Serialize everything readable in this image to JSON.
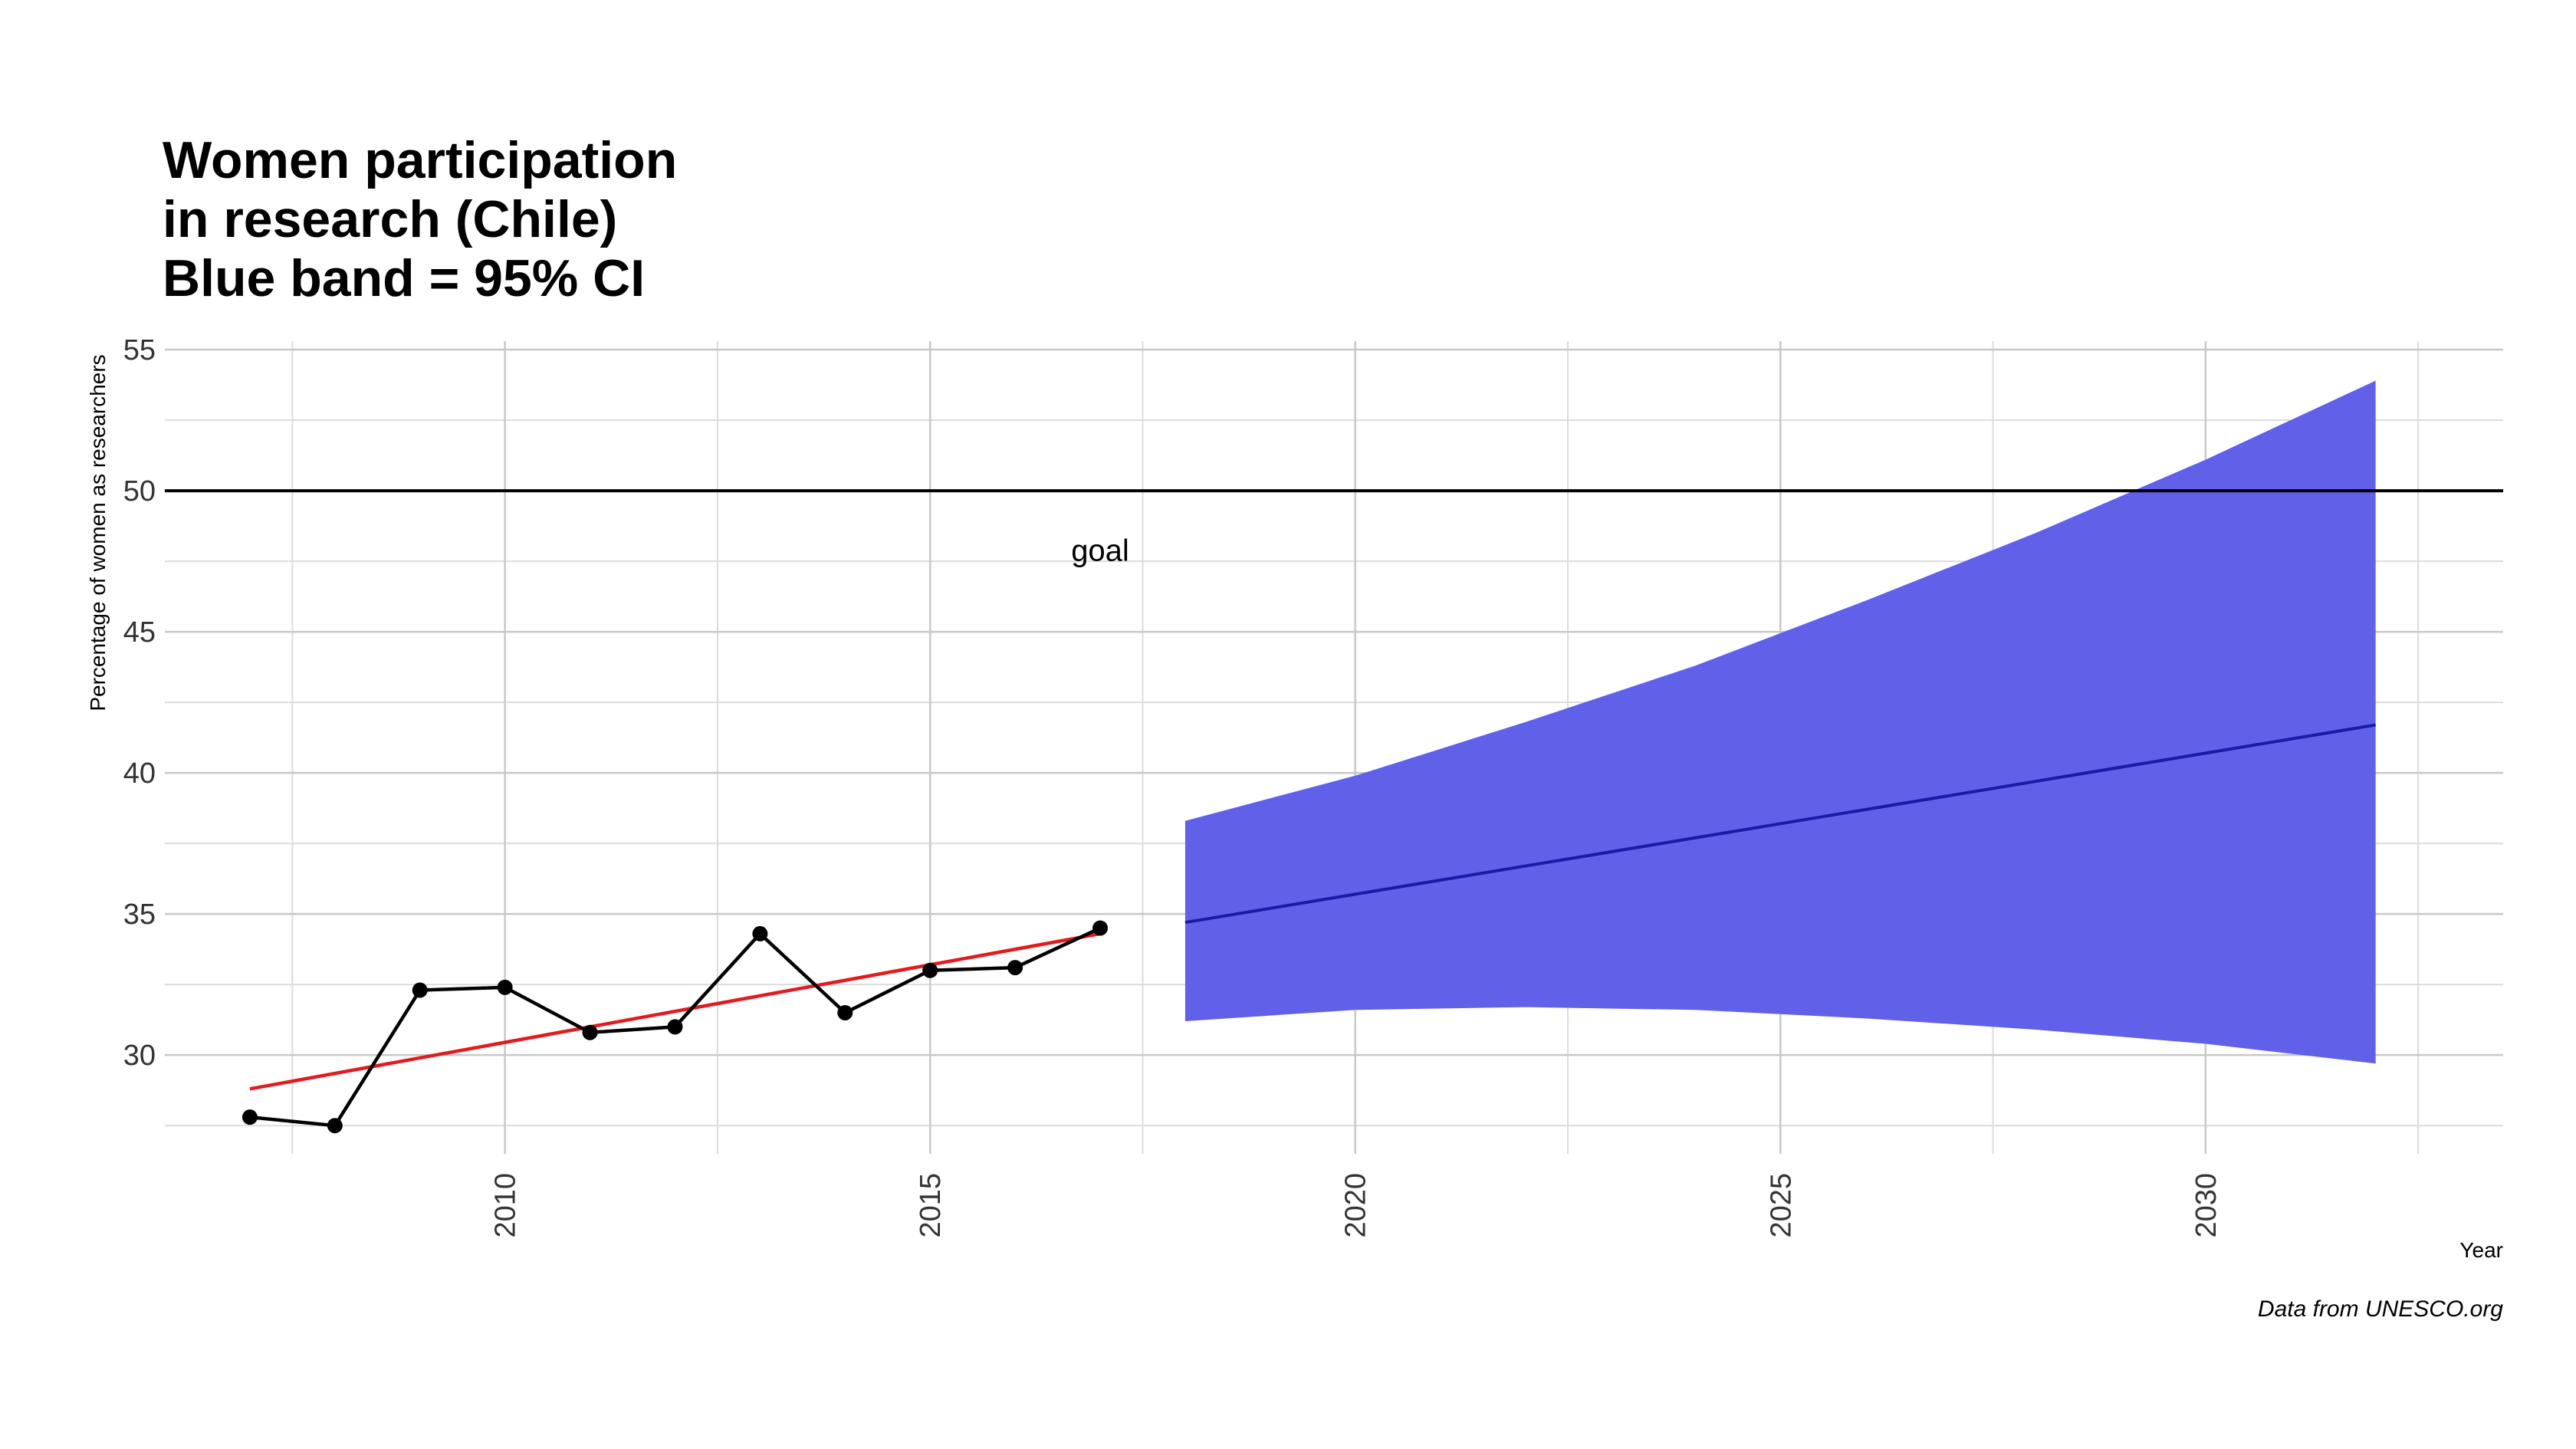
{
  "chart_data": {
    "type": "line",
    "title_lines": [
      "Women participation",
      "in research (Chile)",
      "Blue band =  95% CI"
    ],
    "xlabel": "Year",
    "ylabel": "Percentage of women as researchers",
    "caption": "Data from UNESCO.org",
    "xlim": [
      2006,
      2033.5
    ],
    "ylim": [
      26.5,
      55.3
    ],
    "x_ticks": [
      2010,
      2015,
      2020,
      2025,
      2030
    ],
    "y_ticks": [
      30,
      35,
      40,
      45,
      50,
      55
    ],
    "x_minor": [
      2007.5,
      2012.5,
      2017.5,
      2022.5,
      2027.5,
      2032.5
    ],
    "y_minor": [
      27.5,
      32.5,
      37.5,
      42.5,
      47.5,
      52.5
    ],
    "grid": true,
    "series": [
      {
        "x": [
          2007,
          2008,
          2009,
          2010,
          2011,
          2012,
          2013,
          2014,
          2015,
          2016,
          2017
        ],
        "y": [
          27.8,
          27.5,
          32.3,
          32.4,
          30.8,
          31.0,
          34.3,
          31.5,
          33.0,
          33.1,
          34.5
        ],
        "color": "#000000",
        "markers": true
      }
    ],
    "trend": {
      "x": [
        2007,
        2017
      ],
      "y": [
        28.8,
        34.3
      ],
      "color": "#e41a1c"
    },
    "forecast": {
      "x": [
        2018,
        2020,
        2022,
        2024,
        2026,
        2028,
        2030,
        2032
      ],
      "mean": [
        34.7,
        35.7,
        36.7,
        37.7,
        38.7,
        39.7,
        40.7,
        41.7
      ],
      "lower": [
        31.2,
        31.6,
        31.7,
        31.6,
        31.3,
        30.9,
        30.4,
        29.7
      ],
      "upper": [
        38.3,
        39.9,
        41.8,
        43.8,
        46.1,
        48.5,
        51.1,
        53.9
      ],
      "band_color": "#6060e8",
      "line_color": "#1a1aa8"
    },
    "goal": {
      "y": 50,
      "label": "goal",
      "label_x": 2017,
      "label_y": 47.9,
      "color": "#000000"
    }
  }
}
